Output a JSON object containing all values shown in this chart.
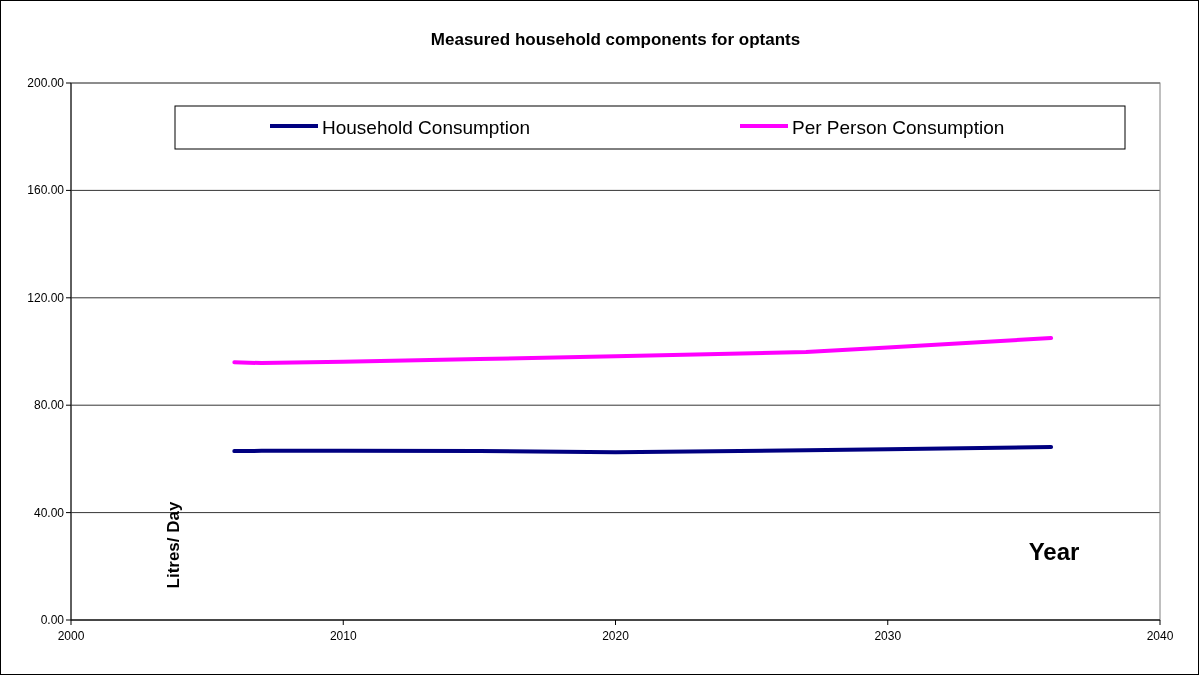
{
  "chart_data": {
    "type": "line",
    "title": "Measured household components for optants",
    "xlabel": "Year",
    "ylabel": "Litres/ Day",
    "x": [
      2006,
      2007,
      2010,
      2015,
      2020,
      2027,
      2030,
      2036
    ],
    "series": [
      {
        "name": "Household Consumption",
        "color": "#000080",
        "values": [
          62.9,
          63,
          63,
          62.9,
          62.5,
          63.2,
          63.6,
          64.4
        ]
      },
      {
        "name": "Per Person Consumption",
        "color": "#ff00ff",
        "values": [
          96,
          95.7,
          96.2,
          97.2,
          98.2,
          99.8,
          101.5,
          105
        ]
      }
    ],
    "xlim": [
      2000,
      2040
    ],
    "xticks": [
      2000,
      2010,
      2020,
      2030,
      2040
    ],
    "ylim": [
      0,
      200
    ],
    "yticks": [
      {
        "value": 0,
        "label": "0.00"
      },
      {
        "value": 40,
        "label": "40.00"
      },
      {
        "value": 80,
        "label": "80.00"
      },
      {
        "value": 120,
        "label": "120.00"
      },
      {
        "value": 160,
        "label": "160.00"
      },
      {
        "value": 200,
        "label": "200.00"
      }
    ],
    "grid": "y",
    "legend": "top",
    "marker": "none",
    "line_style": "solid"
  }
}
